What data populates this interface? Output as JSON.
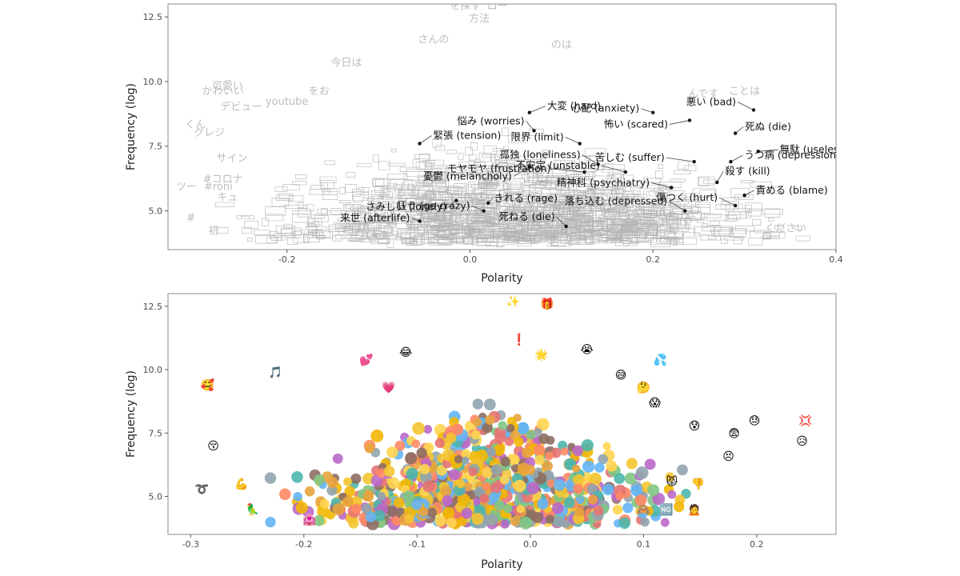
{
  "chart_data": [
    {
      "type": "scatter",
      "title": "",
      "xlabel": "Polarity",
      "ylabel": "Frequency (log)",
      "xlim": [
        -0.33,
        0.4
      ],
      "ylim": [
        3.5,
        13.0
      ],
      "xticks": [
        -0.2,
        0.0,
        0.2,
        0.4
      ],
      "xtick_labels": [
        "-0.2",
        "0.0",
        "0.2",
        "0.4"
      ],
      "yticks": [
        5.0,
        7.5,
        10.0,
        12.5
      ],
      "ytick_labels": [
        "5.0",
        "7.5",
        "10.0",
        "12.5"
      ],
      "grid": false,
      "legend": "none",
      "background_text_color": "#bdbdbd",
      "dense_cloud_color": "#b5b5b5",
      "labeled_points": [
        {
          "label": "悪い (bad)",
          "x": 0.31,
          "y": 8.9
        },
        {
          "label": "心配 (anxiety)",
          "x": 0.2,
          "y": 8.8
        },
        {
          "label": "怖い (scared)",
          "x": 0.24,
          "y": 8.5
        },
        {
          "label": "大変 (hard)",
          "x": 0.065,
          "y": 8.8
        },
        {
          "label": "悩み (worries)",
          "x": 0.07,
          "y": 8.1
        },
        {
          "label": "死ぬ (die)",
          "x": 0.29,
          "y": 8.0
        },
        {
          "label": "緊張 (tension)",
          "x": -0.055,
          "y": 7.6
        },
        {
          "label": "限界 (limit)",
          "x": 0.12,
          "y": 7.6
        },
        {
          "label": "無駄 (useless)",
          "x": 0.315,
          "y": 7.3
        },
        {
          "label": "憂鬱 (melancholy)",
          "x": 0.065,
          "y": 6.7
        },
        {
          "label": "孤独 (loneliness)",
          "x": 0.14,
          "y": 6.8
        },
        {
          "label": "モヤモヤ (frustration)",
          "x": 0.125,
          "y": 6.5
        },
        {
          "label": "苦しむ (suffer)",
          "x": 0.245,
          "y": 6.9
        },
        {
          "label": "うつ病 (depression)",
          "x": 0.285,
          "y": 6.9
        },
        {
          "label": "殺す (kill)",
          "x": 0.27,
          "y": 6.1
        },
        {
          "label": "さみしい (lonely)",
          "x": -0.015,
          "y": 5.4
        },
        {
          "label": "きれる (rage)",
          "x": 0.02,
          "y": 5.3
        },
        {
          "label": "不安定 (unstable)",
          "x": 0.17,
          "y": 6.5
        },
        {
          "label": "責める (blame)",
          "x": 0.3,
          "y": 5.6
        },
        {
          "label": "来世 (afterlife)",
          "x": -0.055,
          "y": 4.6
        },
        {
          "label": "狂う (go crazy)",
          "x": 0.015,
          "y": 5.0
        },
        {
          "label": "精神科 (psychiatry)",
          "x": 0.22,
          "y": 5.9
        },
        {
          "label": "傷つく (hurt)",
          "x": 0.29,
          "y": 5.2
        },
        {
          "label": "落ち込む (depressed)",
          "x": 0.235,
          "y": 5.0
        },
        {
          "label": "死ねる (die)",
          "x": 0.105,
          "y": 4.4
        }
      ],
      "background_words": [
        {
          "label": "を探す",
          "x": -0.005,
          "y": 12.8
        },
        {
          "label": "ロー",
          "x": 0.03,
          "y": 12.8
        },
        {
          "label": "方法",
          "x": 0.01,
          "y": 12.3
        },
        {
          "label": "さんの",
          "x": -0.04,
          "y": 11.5
        },
        {
          "label": "のは",
          "x": 0.1,
          "y": 11.3
        },
        {
          "label": "今日は",
          "x": -0.135,
          "y": 10.6
        },
        {
          "label": "可愛い",
          "x": -0.265,
          "y": 9.7
        },
        {
          "label": "かわいい",
          "x": -0.27,
          "y": 9.5
        },
        {
          "label": "デビュー",
          "x": -0.25,
          "y": 8.9
        },
        {
          "label": "youtube",
          "x": -0.2,
          "y": 9.1
        },
        {
          "label": "をお",
          "x": -0.165,
          "y": 9.5
        },
        {
          "label": "んです",
          "x": 0.255,
          "y": 9.4
        },
        {
          "label": "ことは",
          "x": 0.3,
          "y": 9.5
        },
        {
          "label": "くん",
          "x": -0.3,
          "y": 8.2
        },
        {
          "label": "クレジ",
          "x": -0.285,
          "y": 7.9
        },
        {
          "label": "サイン",
          "x": -0.26,
          "y": 6.9
        },
        {
          "label": "#コロナ",
          "x": -0.27,
          "y": 6.1
        },
        {
          "label": "#roni",
          "x": -0.275,
          "y": 5.8
        },
        {
          "label": "ツー",
          "x": -0.31,
          "y": 5.8
        },
        {
          "label": "キュ",
          "x": -0.265,
          "y": 5.4
        },
        {
          "label": "#",
          "x": -0.305,
          "y": 4.6
        },
        {
          "label": "初",
          "x": -0.28,
          "y": 4.1
        },
        {
          "label": "ください",
          "x": 0.345,
          "y": 4.2
        }
      ]
    },
    {
      "type": "scatter",
      "title": "",
      "xlabel": "Polarity",
      "ylabel": "Frequency (log)",
      "xlim": [
        -0.32,
        0.27
      ],
      "ylim": [
        3.5,
        13.0
      ],
      "xticks": [
        -0.3,
        -0.2,
        -0.1,
        0.0,
        0.1,
        0.2
      ],
      "xtick_labels": [
        "-0.3",
        "-0.2",
        "-0.1",
        "0.0",
        "0.1",
        "0.2"
      ],
      "yticks": [
        5.0,
        7.5,
        10.0,
        12.5
      ],
      "ytick_labels": [
        "5.0",
        "7.5",
        "10.0",
        "12.5"
      ],
      "grid": false,
      "legend": "none",
      "labeled_points": [
        {
          "label": "✨",
          "x": -0.015,
          "y": 12.7
        },
        {
          "label": "🎁",
          "x": 0.015,
          "y": 12.6
        },
        {
          "label": "❗",
          "x": -0.01,
          "y": 11.2
        },
        {
          "label": "😭",
          "x": 0.05,
          "y": 10.8
        },
        {
          "label": "😂",
          "x": -0.11,
          "y": 10.7
        },
        {
          "label": "💕",
          "x": -0.145,
          "y": 10.4
        },
        {
          "label": "💦",
          "x": 0.115,
          "y": 10.4
        },
        {
          "label": "🌟",
          "x": 0.01,
          "y": 10.6
        },
        {
          "label": "🎵",
          "x": -0.225,
          "y": 9.9
        },
        {
          "label": "🥰",
          "x": -0.285,
          "y": 9.4
        },
        {
          "label": "💗",
          "x": -0.125,
          "y": 9.3
        },
        {
          "label": "😅",
          "x": 0.08,
          "y": 9.8
        },
        {
          "label": "🤔",
          "x": 0.1,
          "y": 9.3
        },
        {
          "label": "😱",
          "x": 0.11,
          "y": 8.7
        },
        {
          "label": "😰",
          "x": 0.145,
          "y": 7.8
        },
        {
          "label": "😓",
          "x": 0.198,
          "y": 8.0
        },
        {
          "label": "💢",
          "x": 0.243,
          "y": 8.0
        },
        {
          "label": "😨",
          "x": 0.18,
          "y": 7.5
        },
        {
          "label": "😣",
          "x": 0.175,
          "y": 6.6
        },
        {
          "label": "😥",
          "x": 0.24,
          "y": 7.2
        },
        {
          "label": "😚",
          "x": -0.28,
          "y": 7.0
        },
        {
          "label": "➰",
          "x": -0.29,
          "y": 5.3
        },
        {
          "label": "💪",
          "x": -0.255,
          "y": 5.5
        },
        {
          "label": "🦜",
          "x": -0.245,
          "y": 4.5
        },
        {
          "label": "😾",
          "x": 0.125,
          "y": 5.6
        },
        {
          "label": "🆖",
          "x": 0.12,
          "y": 4.5
        },
        {
          "label": "🙍",
          "x": 0.145,
          "y": 4.5
        },
        {
          "label": "👎",
          "x": 0.148,
          "y": 5.5
        },
        {
          "label": "🙈",
          "x": 0.1,
          "y": 4.5
        },
        {
          "label": "🏩",
          "x": -0.195,
          "y": 4.1
        }
      ]
    }
  ]
}
